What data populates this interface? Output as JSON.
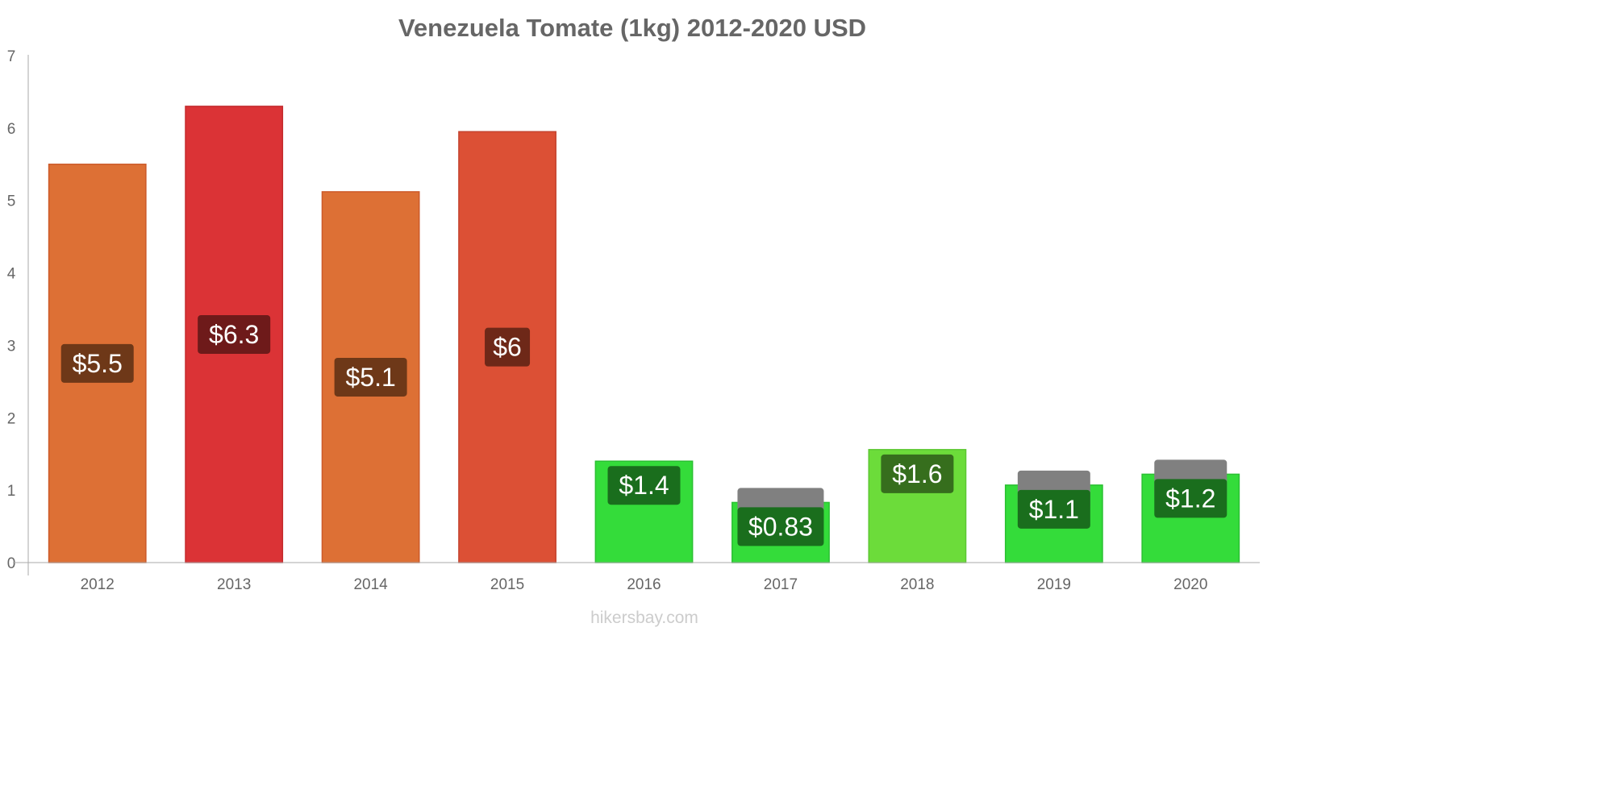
{
  "chart_data": {
    "type": "bar",
    "title": "Venezuela Tomate (1kg) 2012-2020 USD",
    "xlabel": "",
    "ylabel": "",
    "categories": [
      "2012",
      "2013",
      "2014",
      "2015",
      "2016",
      "2017",
      "2018",
      "2019",
      "2020"
    ],
    "values": [
      5.5,
      6.3,
      5.12,
      5.95,
      1.4,
      0.83,
      1.56,
      1.07,
      1.22
    ],
    "value_labels": [
      "$5.5",
      "$6.3",
      "$5.1",
      "$6",
      "$1.4",
      "$0.83",
      "$1.6",
      "$1.1",
      "$1.2"
    ],
    "ylim": [
      0,
      7
    ],
    "yticks": [
      "0",
      "1",
      "2",
      "3",
      "4",
      "5",
      "6",
      "7"
    ],
    "grid": false,
    "legend": "none",
    "bar_colors": [
      "#dd7035",
      "#db3336",
      "#dd7035",
      "#dc5035",
      "#34dc3a",
      "#34dc3a",
      "#6cdc3a",
      "#34dc3a",
      "#34dc3a"
    ],
    "bar_stroke_colors": [
      "#cc5a2a",
      "#c42a2c",
      "#cc5a2a",
      "#c44430",
      "#2ac032",
      "#2ac032",
      "#5cc632",
      "#2ac032",
      "#2ac032"
    ],
    "label_bg_colors": [
      "#6e3818",
      "#6e1a1a",
      "#6e3818",
      "#6e2818",
      "#1a6e1d",
      "#1a6e1d",
      "#366e1d",
      "#1a6e1d",
      "#1a6e1d"
    ],
    "label_stack_colors": [
      null,
      null,
      null,
      null,
      null,
      "#808080",
      null,
      "#808080",
      "#808080"
    ]
  },
  "watermark": "hikersbay.com",
  "colors": {
    "axis": "#aaaaaa",
    "text": "#666666"
  }
}
